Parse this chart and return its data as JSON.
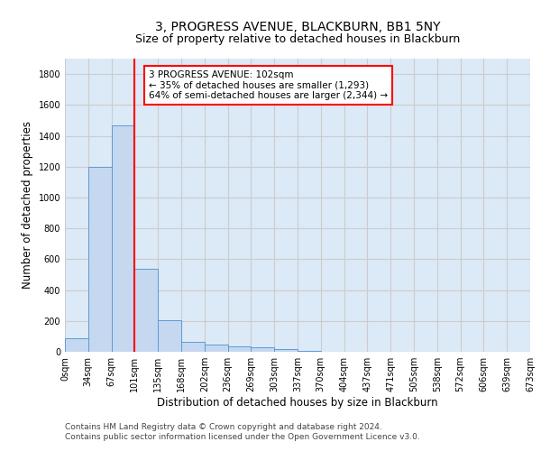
{
  "title_line1": "3, PROGRESS AVENUE, BLACKBURN, BB1 5NY",
  "title_line2": "Size of property relative to detached houses in Blackburn",
  "xlabel": "Distribution of detached houses by size in Blackburn",
  "ylabel": "Number of detached properties",
  "bar_values": [
    90,
    1200,
    1470,
    540,
    205,
    65,
    45,
    35,
    28,
    15,
    5,
    0,
    0,
    0,
    0,
    0,
    0,
    0,
    0
  ],
  "tick_labels": [
    "0sqm",
    "34sqm",
    "67sqm",
    "101sqm",
    "135sqm",
    "168sqm",
    "202sqm",
    "236sqm",
    "269sqm",
    "303sqm",
    "337sqm",
    "370sqm",
    "404sqm",
    "437sqm",
    "471sqm",
    "505sqm",
    "538sqm",
    "572sqm",
    "606sqm",
    "639sqm",
    "673sqm"
  ],
  "bar_color": "#c5d8f0",
  "bar_edge_color": "#5b9bd5",
  "vline_x_index": 3,
  "annotation_text": "3 PROGRESS AVENUE: 102sqm\n← 35% of detached houses are smaller (1,293)\n64% of semi-detached houses are larger (2,344) →",
  "annotation_box_color": "white",
  "annotation_box_edge_color": "red",
  "vline_color": "red",
  "ylim": [
    0,
    1900
  ],
  "yticks": [
    0,
    200,
    400,
    600,
    800,
    1000,
    1200,
    1400,
    1600,
    1800
  ],
  "grid_color": "#cccccc",
  "bg_color": "#dce9f7",
  "footer_line1": "Contains HM Land Registry data © Crown copyright and database right 2024.",
  "footer_line2": "Contains public sector information licensed under the Open Government Licence v3.0.",
  "title_fontsize": 10,
  "subtitle_fontsize": 9,
  "axis_label_fontsize": 8.5,
  "tick_fontsize": 7,
  "annot_fontsize": 7.5,
  "footer_fontsize": 6.5
}
